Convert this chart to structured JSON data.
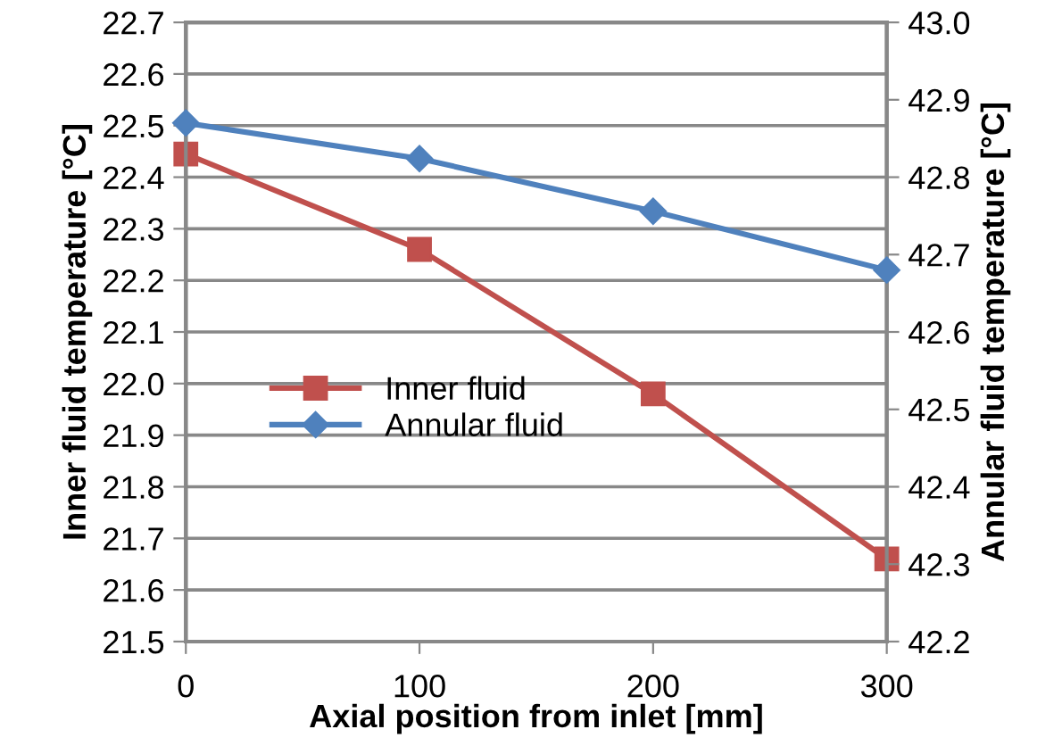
{
  "chart_data": {
    "type": "line",
    "x": [
      0,
      100,
      200,
      300
    ],
    "xlabel": "Axial position from inlet [mm]",
    "ylabel": "Inner fluid temperature [°C]",
    "y2label": "Annular fluid temperature [°C]",
    "series": [
      {
        "name": "Inner fluid",
        "color": "#c0504d",
        "values": [
          22.445,
          22.26,
          21.98,
          21.66
        ],
        "marker": "square"
      },
      {
        "name": "Annular fluid",
        "color": "#4f81bd",
        "values": [
          42.87,
          42.824,
          42.756,
          42.68
        ],
        "marker": "diamond",
        "axis": "y2"
      }
    ],
    "xlim": [
      0,
      300
    ],
    "xticks": [
      0,
      100,
      200,
      300
    ],
    "ylim": [
      21.5,
      22.7
    ],
    "yticks": [
      21.5,
      21.6,
      21.7,
      21.8,
      21.9,
      {
        "value": 22.0,
        "label": "22.0"
      },
      22.1,
      22.2,
      22.3,
      22.4,
      22.5,
      22.6,
      22.7
    ],
    "y2lim": [
      42.2,
      43.0
    ],
    "y2ticks": [
      42.2,
      42.3,
      42.4,
      42.5,
      42.6,
      42.7,
      42.8,
      42.9,
      {
        "value": 43.0,
        "label": "43.0"
      }
    ],
    "grid": "y",
    "legend": "center left",
    "line_style": "solid"
  }
}
